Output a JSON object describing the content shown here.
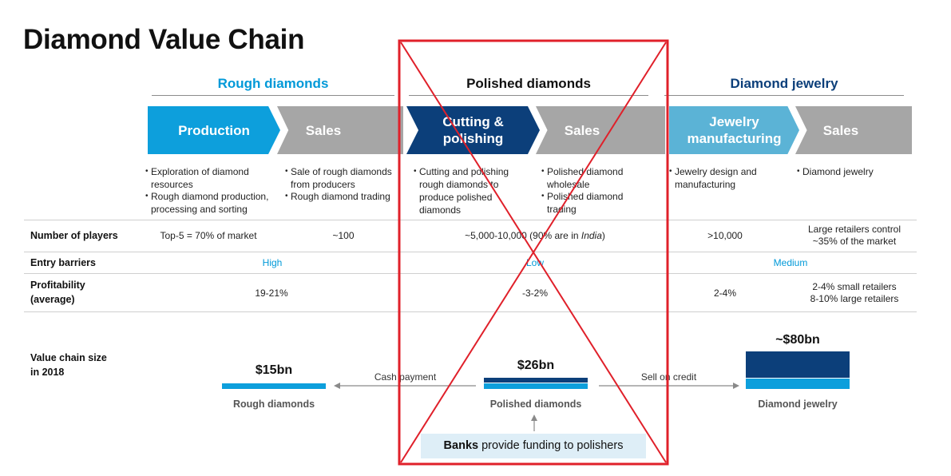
{
  "title": "Diamond Value Chain",
  "stages": [
    {
      "label": "Rough diamonds",
      "color": "#0099d8"
    },
    {
      "label": "Polished diamonds",
      "color": "#111111"
    },
    {
      "label": "Diamond jewelry",
      "color": "#0c3f7a"
    }
  ],
  "steps": [
    {
      "label": "Production",
      "color": "#0d9fdc"
    },
    {
      "label": "Sales",
      "color": "#a6a6a6"
    },
    {
      "label": "Cutting &\npolishing",
      "color": "#0c3f7a"
    },
    {
      "label": "Sales",
      "color": "#a6a6a6"
    },
    {
      "label": "Jewelry\nmanufacturing",
      "color": "#5bb3d6"
    },
    {
      "label": "Sales",
      "color": "#a6a6a6"
    }
  ],
  "bullets": [
    [
      "Exploration of diamond resources",
      "Rough diamond production, processing  and sorting"
    ],
    [
      "Sale of rough diamonds from producers",
      "Rough diamond trading"
    ],
    [
      "Cutting and polishing rough diamonds to produce polished diamonds"
    ],
    [
      "Polished diamond wholesale",
      "Polished diamond trading"
    ],
    [
      "Jewelry design and manufacturing"
    ],
    [
      "Diamond jewelry"
    ]
  ],
  "rows": {
    "players": {
      "label": "Number of players",
      "production": "Top-5 = 70% of market",
      "rough_sales": "~100",
      "polished_prefix": "~5,000-10,000 (90% are in ",
      "polished_italic": "India",
      "polished_suffix": ")",
      "jewelry_mfg": ">10,000",
      "jewelry_sales_1": "Large retailers control",
      "jewelry_sales_2": "~35% of the market"
    },
    "barriers": {
      "label": "Entry barriers",
      "rough": "High",
      "polished": "Low",
      "jewelry": "Medium"
    },
    "profitability": {
      "label_1": "Profitability",
      "label_2": "(average)",
      "rough": "19-21%",
      "polished": "-3-2%",
      "jewelry_mfg": "2-4%",
      "jewelry_sales_1": "2-4% small retailers",
      "jewelry_sales_2": "8-10% large retailers"
    }
  },
  "value_chain": {
    "label_1": "Value chain size",
    "label_2": "in 2018",
    "rough": {
      "value": "$15bn",
      "name": "Rough diamonds"
    },
    "polished": {
      "value": "$26bn",
      "name": "Polished diamonds"
    },
    "jewelry": {
      "value": "~$80bn",
      "name": "Diamond jewelry"
    },
    "flow_left": "Cash payment",
    "flow_right": "Sell on credit",
    "banks_bold": "Banks",
    "banks_rest": " provide funding to polishers"
  },
  "colors": {
    "accent_blue": "#0099d8",
    "dark_blue": "#0c3f7a",
    "light_blue": "#5bb3d6",
    "grey": "#a6a6a6",
    "cross_out_red": "#e0202a"
  }
}
